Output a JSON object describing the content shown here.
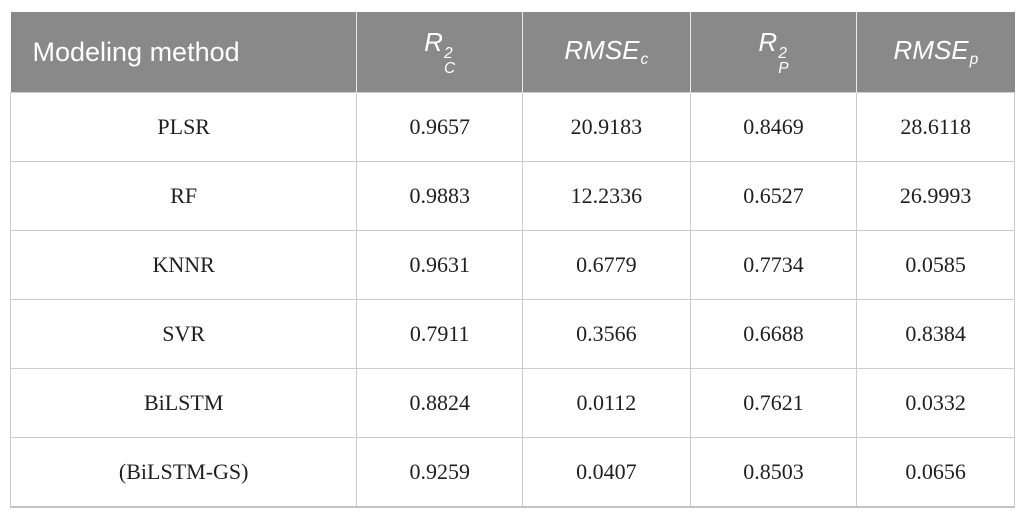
{
  "table": {
    "header": {
      "method_label": "Modeling method",
      "r2c": {
        "base": "R",
        "sup": "2",
        "sub": "C"
      },
      "rmsec": {
        "base": "RMSE",
        "sub": "c"
      },
      "r2p": {
        "base": "R",
        "sup": "2",
        "sub": "P"
      },
      "rmsep": {
        "base": "RMSE",
        "sub": "p"
      }
    },
    "rows": [
      {
        "method": "PLSR",
        "r2c": "0.9657",
        "rmsec": "20.9183",
        "r2p": "0.8469",
        "rmsep": "28.6118"
      },
      {
        "method": "RF",
        "r2c": "0.9883",
        "rmsec": "12.2336",
        "r2p": "0.6527",
        "rmsep": "26.9993"
      },
      {
        "method": "KNNR",
        "r2c": "0.9631",
        "rmsec": "0.6779",
        "r2p": "0.7734",
        "rmsep": "0.0585"
      },
      {
        "method": "SVR",
        "r2c": "0.7911",
        "rmsec": "0.3566",
        "r2p": "0.6688",
        "rmsep": "0.8384"
      },
      {
        "method": "BiLSTM",
        "r2c": "0.8824",
        "rmsec": "0.0112",
        "r2p": "0.7621",
        "rmsep": "0.0332"
      },
      {
        "method": "(BiLSTM-GS)",
        "r2c": "0.9259",
        "rmsec": "0.0407",
        "r2p": "0.8503",
        "rmsep": "0.0656"
      }
    ]
  },
  "colors": {
    "header_bg": "#898989",
    "header_text": "#ffffff",
    "body_text": "#1f1f1f",
    "grid_border": "#cccccc"
  },
  "chart_data": {
    "type": "table",
    "columns": [
      "Modeling method",
      "R2_C",
      "RMSE_c",
      "R2_P",
      "RMSE_p"
    ],
    "rows": [
      [
        "PLSR",
        0.9657,
        20.9183,
        0.8469,
        28.6118
      ],
      [
        "RF",
        0.9883,
        12.2336,
        0.6527,
        26.9993
      ],
      [
        "KNNR",
        0.9631,
        0.6779,
        0.7734,
        0.0585
      ],
      [
        "SVR",
        0.7911,
        0.3566,
        0.6688,
        0.8384
      ],
      [
        "BiLSTM",
        0.8824,
        0.0112,
        0.7621,
        0.0332
      ],
      [
        "(BiLSTM-GS)",
        0.9259,
        0.0407,
        0.8503,
        0.0656
      ]
    ]
  }
}
